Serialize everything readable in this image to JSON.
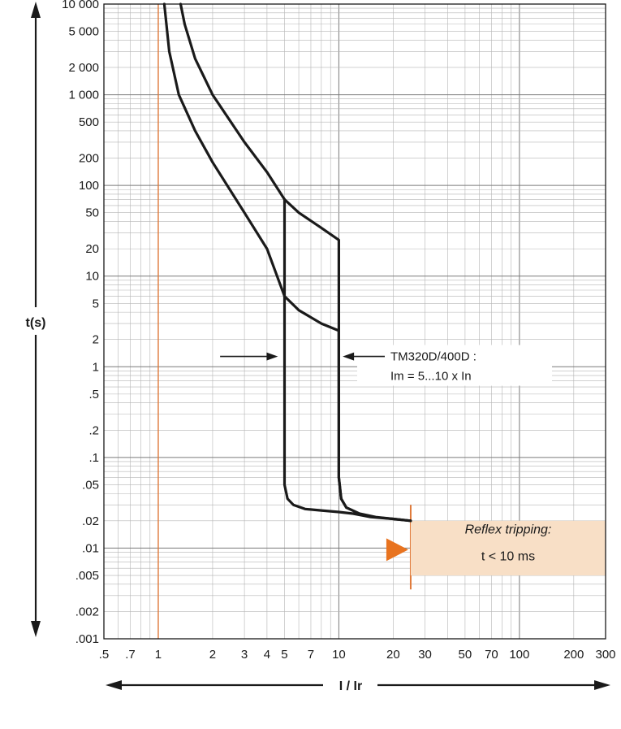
{
  "chart_data": {
    "type": "line",
    "title": "",
    "xlabel": "I / Ir",
    "ylabel": "t(s)",
    "x_scale": "log",
    "y_scale": "log",
    "xlim": [
      0.5,
      300
    ],
    "ylim": [
      0.001,
      10000
    ],
    "grid": true,
    "x_ticks": [
      {
        "v": 0.5,
        "label": ".5"
      },
      {
        "v": 0.7,
        "label": ".7"
      },
      {
        "v": 1,
        "label": "1"
      },
      {
        "v": 2,
        "label": "2"
      },
      {
        "v": 3,
        "label": "3"
      },
      {
        "v": 4,
        "label": "4"
      },
      {
        "v": 5,
        "label": "5"
      },
      {
        "v": 7,
        "label": "7"
      },
      {
        "v": 10,
        "label": "10"
      },
      {
        "v": 20,
        "label": "20"
      },
      {
        "v": 30,
        "label": "30"
      },
      {
        "v": 50,
        "label": "50"
      },
      {
        "v": 70,
        "label": "70"
      },
      {
        "v": 100,
        "label": "100"
      },
      {
        "v": 200,
        "label": "200"
      },
      {
        "v": 300,
        "label": "300"
      }
    ],
    "y_ticks": [
      {
        "v": 10000,
        "label": "10 000"
      },
      {
        "v": 5000,
        "label": "5 000"
      },
      {
        "v": 2000,
        "label": "2 000"
      },
      {
        "v": 1000,
        "label": "1 000"
      },
      {
        "v": 500,
        "label": "500"
      },
      {
        "v": 200,
        "label": "200"
      },
      {
        "v": 100,
        "label": "100"
      },
      {
        "v": 50,
        "label": "50"
      },
      {
        "v": 20,
        "label": "20"
      },
      {
        "v": 10,
        "label": "10"
      },
      {
        "v": 5,
        "label": "5"
      },
      {
        "v": 2,
        "label": "2"
      },
      {
        "v": 1,
        "label": "1"
      },
      {
        "v": 0.5,
        "label": ".5"
      },
      {
        "v": 0.2,
        "label": ".2"
      },
      {
        "v": 0.1,
        "label": ".1"
      },
      {
        "v": 0.05,
        "label": ".05"
      },
      {
        "v": 0.02,
        "label": ".02"
      },
      {
        "v": 0.01,
        "label": ".01"
      },
      {
        "v": 0.005,
        "label": ".005"
      },
      {
        "v": 0.002,
        "label": ".002"
      },
      {
        "v": 0.001,
        "label": ".001"
      }
    ],
    "series": [
      {
        "values": [
          [
            1.08,
            10000
          ],
          [
            1.15,
            3000
          ],
          [
            1.3,
            1000
          ],
          [
            1.6,
            400
          ],
          [
            2,
            180
          ],
          [
            3,
            50
          ],
          [
            4,
            20
          ],
          [
            5,
            6
          ],
          [
            6,
            4.2
          ],
          [
            8,
            3.0
          ],
          [
            10,
            2.5
          ],
          [
            10,
            0.06
          ],
          [
            10.3,
            0.035
          ],
          [
            11,
            0.028
          ],
          [
            13,
            0.024
          ],
          [
            16,
            0.022
          ],
          [
            20,
            0.021
          ],
          [
            25,
            0.02
          ]
        ]
      },
      {
        "values": [
          [
            1.33,
            10000
          ],
          [
            1.4,
            6000
          ],
          [
            1.6,
            2500
          ],
          [
            2,
            1000
          ],
          [
            3,
            300
          ],
          [
            4,
            140
          ],
          [
            5,
            70
          ],
          [
            6,
            50
          ],
          [
            8,
            34
          ],
          [
            10,
            25
          ],
          [
            10,
            0.06
          ],
          [
            10.3,
            0.035
          ],
          [
            11,
            0.028
          ]
        ]
      },
      {
        "values": [
          [
            5,
            70
          ],
          [
            5,
            0.05
          ],
          [
            5.2,
            0.035
          ],
          [
            5.6,
            0.03
          ],
          [
            6.5,
            0.027
          ],
          [
            8,
            0.026
          ],
          [
            10,
            0.025
          ],
          [
            12,
            0.024
          ],
          [
            15,
            0.022
          ],
          [
            20,
            0.021
          ],
          [
            25,
            0.02
          ]
        ]
      }
    ],
    "reference_lines": [
      {
        "x": 1,
        "color": "#e07a3a"
      },
      {
        "x": 25,
        "color": "#e07a3a",
        "y_range": [
          0.0035,
          0.03
        ]
      }
    ],
    "annotations": [
      {
        "lines": [
          "TM320D/400D :",
          "Im = 5...10 x In"
        ],
        "arrow_from_x": 2.2,
        "arrow_to_x": 4.6,
        "arrow_y": 1.3,
        "arrow2_to_x": 10.5
      },
      {
        "lines": [
          "Reflex tripping:",
          "t < 10 ms"
        ],
        "x_range": [
          25,
          300
        ],
        "y_range": [
          0.005,
          0.02
        ],
        "fill": "#f8dfc6"
      }
    ]
  }
}
